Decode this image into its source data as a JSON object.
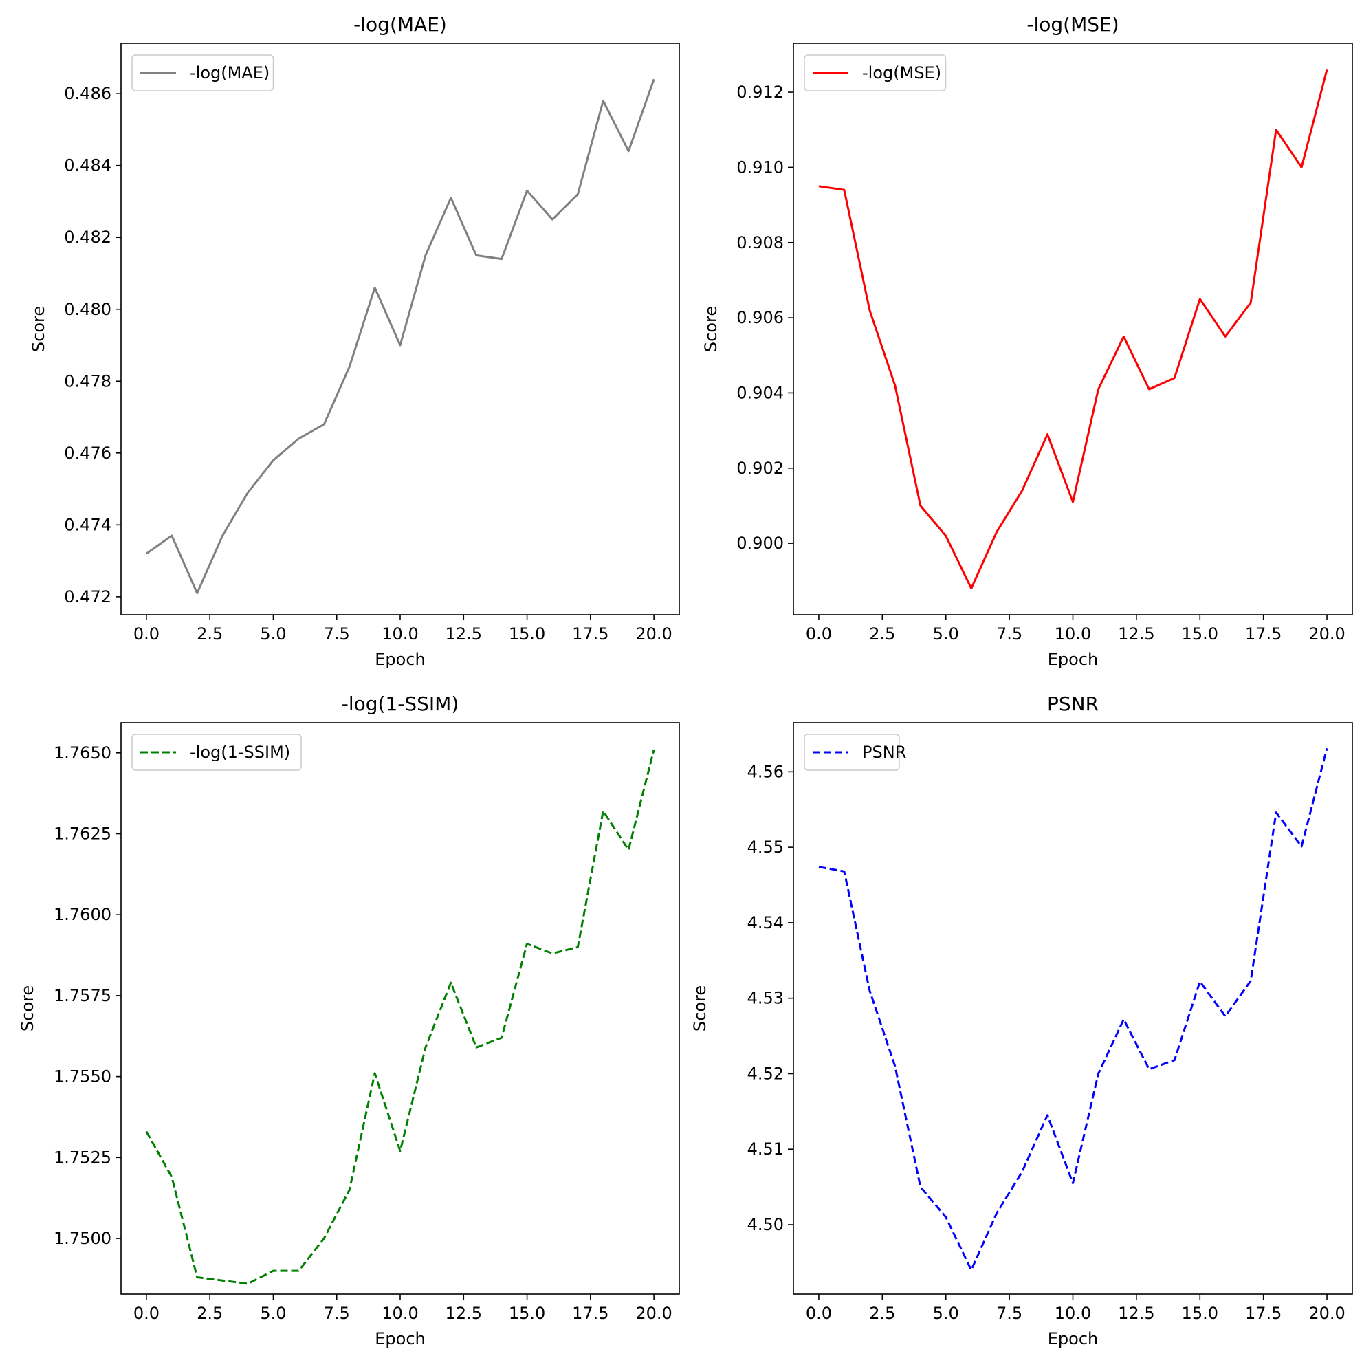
{
  "figure": {
    "layout": "2x2 grid"
  },
  "chart_data": [
    {
      "type": "line",
      "title": "-log(MAE)",
      "xlabel": "Epoch",
      "ylabel": "Score",
      "xlim": [
        -1,
        21
      ],
      "ylim": [
        0.4715,
        0.4874
      ],
      "xticks": [
        0.0,
        2.5,
        5.0,
        7.5,
        10.0,
        12.5,
        15.0,
        17.5,
        20.0
      ],
      "xtick_labels": [
        "0.0",
        "2.5",
        "5.0",
        "7.5",
        "10.0",
        "12.5",
        "15.0",
        "17.5",
        "20.0"
      ],
      "yticks": [
        0.472,
        0.474,
        0.476,
        0.478,
        0.48,
        0.482,
        0.484,
        0.486
      ],
      "ytick_labels": [
        "0.472",
        "0.474",
        "0.476",
        "0.478",
        "0.480",
        "0.482",
        "0.484",
        "0.486"
      ],
      "legend_position": "top-left",
      "grid": false,
      "x": [
        0,
        1,
        2,
        3,
        4,
        5,
        6,
        7,
        8,
        9,
        10,
        11,
        12,
        13,
        14,
        15,
        16,
        17,
        18,
        19,
        20
      ],
      "series": [
        {
          "name": "-log(MAE)",
          "color": "#808080",
          "dash": "solid",
          "values": [
            0.4732,
            0.4737,
            0.4721,
            0.4737,
            0.4749,
            0.4758,
            0.4764,
            0.4768,
            0.4784,
            0.4806,
            0.479,
            0.4815,
            0.4831,
            0.4815,
            0.4814,
            0.4833,
            0.4825,
            0.4832,
            0.4858,
            0.4844,
            0.4864
          ]
        }
      ]
    },
    {
      "type": "line",
      "title": "-log(MSE)",
      "xlabel": "Epoch",
      "ylabel": "Score",
      "xlim": [
        -1,
        21
      ],
      "ylim": [
        0.8981,
        0.9133
      ],
      "xticks": [
        0.0,
        2.5,
        5.0,
        7.5,
        10.0,
        12.5,
        15.0,
        17.5,
        20.0
      ],
      "xtick_labels": [
        "0.0",
        "2.5",
        "5.0",
        "7.5",
        "10.0",
        "12.5",
        "15.0",
        "17.5",
        "20.0"
      ],
      "yticks": [
        0.9,
        0.902,
        0.904,
        0.906,
        0.908,
        0.91,
        0.912
      ],
      "ytick_labels": [
        "0.900",
        "0.902",
        "0.904",
        "0.906",
        "0.908",
        "0.910",
        "0.912"
      ],
      "legend_position": "top-left",
      "grid": false,
      "x": [
        0,
        1,
        2,
        3,
        4,
        5,
        6,
        7,
        8,
        9,
        10,
        11,
        12,
        13,
        14,
        15,
        16,
        17,
        18,
        19,
        20
      ],
      "series": [
        {
          "name": "-log(MSE)",
          "color": "#ff0000",
          "dash": "solid",
          "values": [
            0.9095,
            0.9094,
            0.9062,
            0.9042,
            0.901,
            0.9002,
            0.8988,
            0.9003,
            0.9014,
            0.9029,
            0.9011,
            0.9041,
            0.9055,
            0.9041,
            0.9044,
            0.9065,
            0.9055,
            0.9064,
            0.911,
            0.91,
            0.9126
          ]
        }
      ]
    },
    {
      "type": "line",
      "title": "-log(1-SSIM)",
      "xlabel": "Epoch",
      "ylabel": "Score",
      "xlim": [
        -1,
        21
      ],
      "ylim": [
        1.74828,
        1.76593
      ],
      "xticks": [
        0.0,
        2.5,
        5.0,
        7.5,
        10.0,
        12.5,
        15.0,
        17.5,
        20.0
      ],
      "xtick_labels": [
        "0.0",
        "2.5",
        "5.0",
        "7.5",
        "10.0",
        "12.5",
        "15.0",
        "17.5",
        "20.0"
      ],
      "yticks": [
        1.75,
        1.7525,
        1.755,
        1.7575,
        1.76,
        1.7625,
        1.765
      ],
      "ytick_labels": [
        "1.7500",
        "1.7525",
        "1.7550",
        "1.7575",
        "1.7600",
        "1.7625",
        "1.7650"
      ],
      "legend_position": "top-left",
      "grid": false,
      "x": [
        0,
        1,
        2,
        3,
        4,
        5,
        6,
        7,
        8,
        9,
        10,
        11,
        12,
        13,
        14,
        15,
        16,
        17,
        18,
        19,
        20
      ],
      "series": [
        {
          "name": "-log(1-SSIM)",
          "color": "#008000",
          "dash": "dashed",
          "values": [
            1.7533,
            1.7519,
            1.7488,
            1.7487,
            1.7486,
            1.749,
            1.749,
            1.75,
            1.7515,
            1.7551,
            1.7527,
            1.7559,
            1.7579,
            1.7559,
            1.7562,
            1.7591,
            1.7588,
            1.759,
            1.7632,
            1.762,
            1.7651
          ]
        }
      ]
    },
    {
      "type": "line",
      "title": "PSNR",
      "xlabel": "Epoch",
      "ylabel": "Score",
      "xlim": [
        -1,
        21
      ],
      "ylim": [
        4.4908,
        4.5665
      ],
      "xticks": [
        0.0,
        2.5,
        5.0,
        7.5,
        10.0,
        12.5,
        15.0,
        17.5,
        20.0
      ],
      "xtick_labels": [
        "0.0",
        "2.5",
        "5.0",
        "7.5",
        "10.0",
        "12.5",
        "15.0",
        "17.5",
        "20.0"
      ],
      "yticks": [
        4.5,
        4.51,
        4.52,
        4.53,
        4.54,
        4.55,
        4.56
      ],
      "ytick_labels": [
        "4.50",
        "4.51",
        "4.52",
        "4.53",
        "4.54",
        "4.55",
        "4.56"
      ],
      "legend_position": "top-left",
      "grid": false,
      "x": [
        0,
        1,
        2,
        3,
        4,
        5,
        6,
        7,
        8,
        9,
        10,
        11,
        12,
        13,
        14,
        15,
        16,
        17,
        18,
        19,
        20
      ],
      "series": [
        {
          "name": "PSNR",
          "color": "#0000ff",
          "dash": "dashed",
          "values": [
            4.5474,
            4.5468,
            4.531,
            4.521,
            4.505,
            4.501,
            4.494,
            4.5015,
            4.507,
            4.5145,
            4.5055,
            4.52,
            4.5272,
            4.5206,
            4.5218,
            4.5322,
            4.5276,
            4.5323,
            4.5546,
            4.5501,
            4.5631
          ]
        }
      ]
    }
  ]
}
